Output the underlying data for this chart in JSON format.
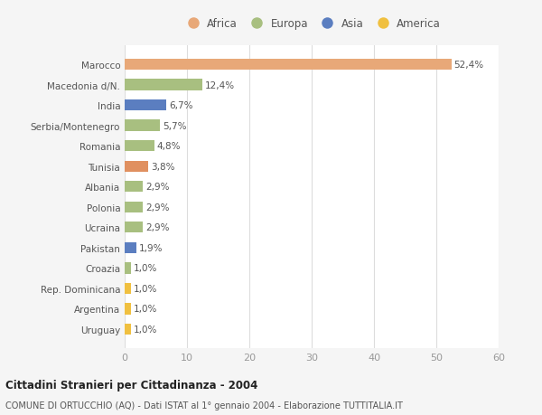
{
  "categories": [
    "Uruguay",
    "Argentina",
    "Rep. Dominicana",
    "Croazia",
    "Pakistan",
    "Ucraina",
    "Polonia",
    "Albania",
    "Tunisia",
    "Romania",
    "Serbia/Montenegro",
    "India",
    "Macedonia d/N.",
    "Marocco"
  ],
  "values": [
    1.0,
    1.0,
    1.0,
    1.0,
    1.9,
    2.9,
    2.9,
    2.9,
    3.8,
    4.8,
    5.7,
    6.7,
    12.4,
    52.4
  ],
  "labels": [
    "1,0%",
    "1,0%",
    "1,0%",
    "1,0%",
    "1,9%",
    "2,9%",
    "2,9%",
    "2,9%",
    "3,8%",
    "4,8%",
    "5,7%",
    "6,7%",
    "12,4%",
    "52,4%"
  ],
  "colors": [
    "#f0c040",
    "#f0c040",
    "#f0c040",
    "#a8bf80",
    "#5b7ec0",
    "#a8bf80",
    "#a8bf80",
    "#a8bf80",
    "#e09060",
    "#a8bf80",
    "#a8bf80",
    "#5b7ec0",
    "#a8bf80",
    "#e8a878"
  ],
  "continent_colors": {
    "Africa": "#e8a878",
    "Europa": "#a8bf80",
    "Asia": "#5b7ec0",
    "America": "#f0c040"
  },
  "legend_labels": [
    "Africa",
    "Europa",
    "Asia",
    "America"
  ],
  "title1": "Cittadini Stranieri per Cittadinanza - 2004",
  "title2": "COMUNE DI ORTUCCHIO (AQ) - Dati ISTAT al 1° gennaio 2004 - Elaborazione TUTTITALIA.IT",
  "xlim": [
    0,
    60
  ],
  "xticks": [
    0,
    10,
    20,
    30,
    40,
    50,
    60
  ],
  "bg_color": "#f5f5f5",
  "bar_bg_color": "#ffffff"
}
